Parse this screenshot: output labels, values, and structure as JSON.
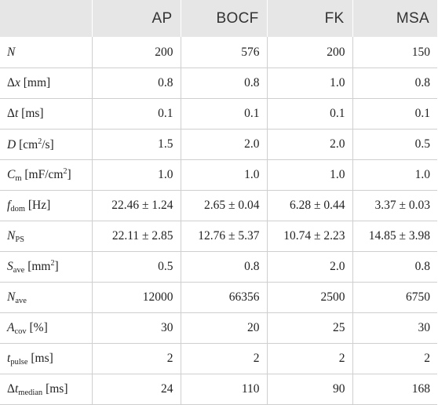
{
  "columns": [
    "",
    "AP",
    "BOCF",
    "FK",
    "MSA"
  ],
  "rows": [
    {
      "prefix": "",
      "sym": "N",
      "sub": "",
      "unit_pre": "",
      "unit_sup": "",
      "unit_post": "",
      "values": [
        "200",
        "576",
        "200",
        "150"
      ]
    },
    {
      "prefix": "Δ",
      "sym": "x",
      "sub": "",
      "unit_pre": " [mm]",
      "unit_sup": "",
      "unit_post": "",
      "values": [
        "0.8",
        "0.8",
        "1.0",
        "0.8"
      ]
    },
    {
      "prefix": "Δ",
      "sym": "t",
      "sub": "",
      "unit_pre": " [ms]",
      "unit_sup": "",
      "unit_post": "",
      "values": [
        "0.1",
        "0.1",
        "0.1",
        "0.1"
      ]
    },
    {
      "prefix": "",
      "sym": "D",
      "sub": "",
      "unit_pre": " [cm",
      "unit_sup": "2",
      "unit_post": "/s]",
      "values": [
        "1.5",
        "2.0",
        "2.0",
        "0.5"
      ]
    },
    {
      "prefix": "",
      "sym": "C",
      "sub": "m",
      "unit_pre": " [mF/cm",
      "unit_sup": "2",
      "unit_post": "]",
      "values": [
        "1.0",
        "1.0",
        "1.0",
        "1.0"
      ]
    },
    {
      "prefix": "",
      "sym": "f",
      "sub": "dom",
      "unit_pre": " [Hz]",
      "unit_sup": "",
      "unit_post": "",
      "values": [
        "22.46 ± 1.24",
        "2.65 ± 0.04",
        "6.28 ± 0.44",
        "3.37 ± 0.03"
      ]
    },
    {
      "prefix": "",
      "sym": "N",
      "sub": "PS",
      "unit_pre": "",
      "unit_sup": "",
      "unit_post": "",
      "values": [
        "22.11 ± 2.85",
        "12.76 ± 5.37",
        "10.74 ± 2.23",
        "14.85 ± 3.98"
      ]
    },
    {
      "prefix": "",
      "sym": "S",
      "sub": "ave",
      "unit_pre": " [mm",
      "unit_sup": "2",
      "unit_post": "]",
      "values": [
        "0.5",
        "0.8",
        "2.0",
        "0.8"
      ]
    },
    {
      "prefix": "",
      "sym": "N",
      "sub": "ave",
      "unit_pre": "",
      "unit_sup": "",
      "unit_post": "",
      "values": [
        "12000",
        "66356",
        "2500",
        "6750"
      ]
    },
    {
      "prefix": "",
      "sym": "A",
      "sub": "cov",
      "unit_pre": " [%]",
      "unit_sup": "",
      "unit_post": "",
      "values": [
        "30",
        "20",
        "25",
        "30"
      ]
    },
    {
      "prefix": "",
      "sym": "t",
      "sub": "pulse",
      "unit_pre": " [ms]",
      "unit_sup": "",
      "unit_post": "",
      "values": [
        "2",
        "2",
        "2",
        "2"
      ]
    },
    {
      "prefix": "Δ",
      "sym": "t",
      "sub": "median",
      "unit_pre": " [ms]",
      "unit_sup": "",
      "unit_post": "",
      "values": [
        "24",
        "110",
        "90",
        "168"
      ]
    }
  ]
}
